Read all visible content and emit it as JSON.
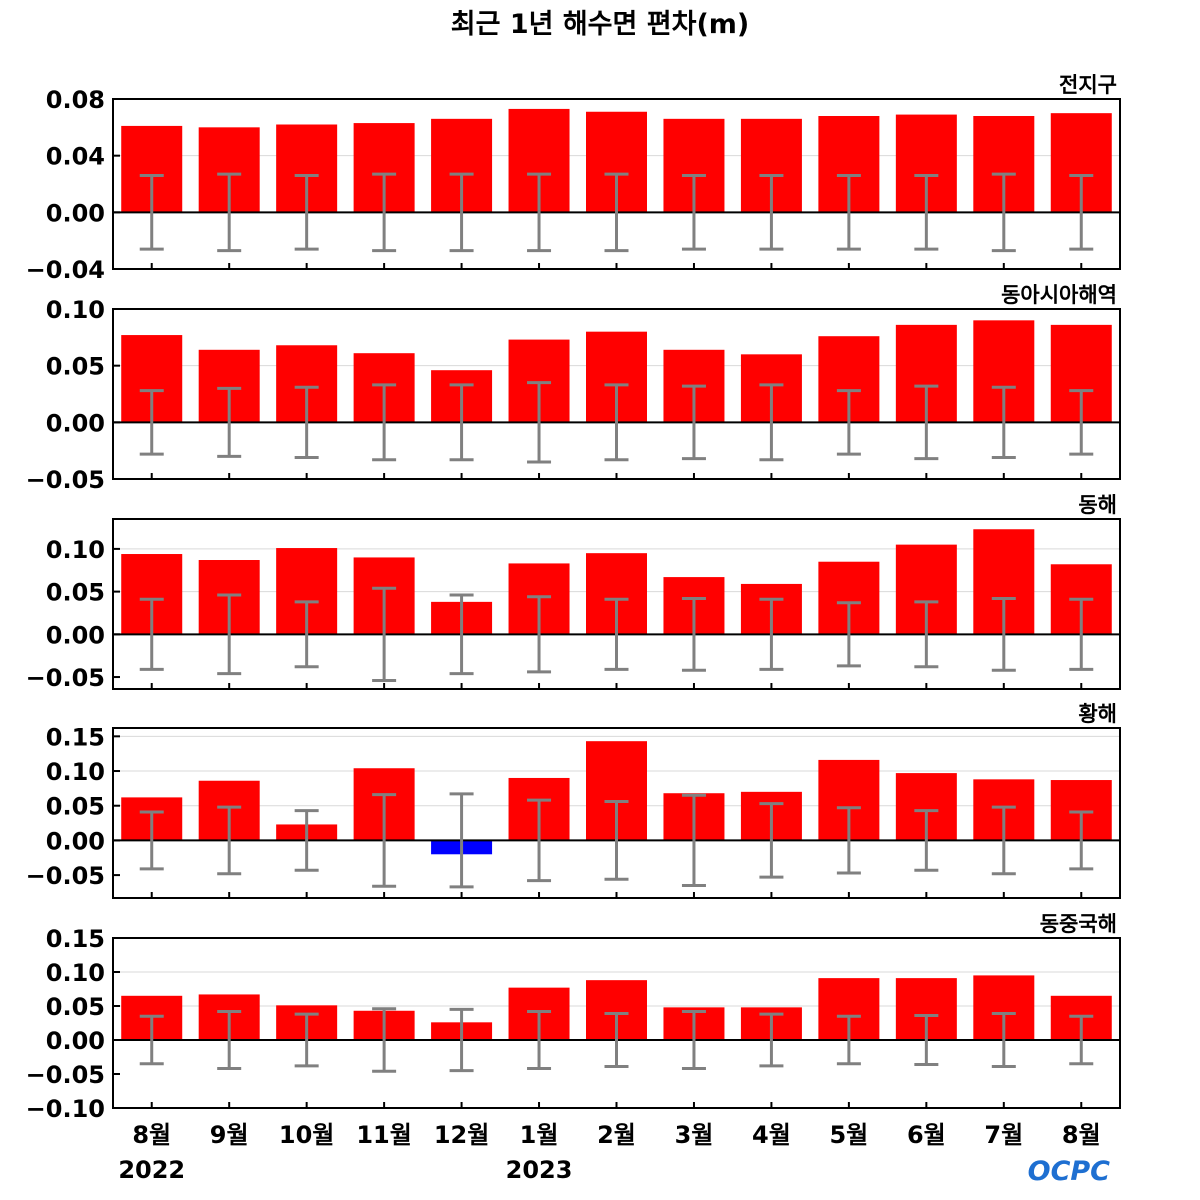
{
  "colors": {
    "positive": "#ff0000",
    "negative": "#0000ff",
    "errorbar": "#808080",
    "zero_line": "#000000",
    "grid": "#d9d9d9",
    "logo": "#1e6fd1"
  },
  "logo_text": "OCPC",
  "chart_data": {
    "type": "bar",
    "title": "최근 1년 해수면 편차(m)",
    "categories": [
      "8월",
      "9월",
      "10월",
      "11월",
      "12월",
      "1월",
      "2월",
      "3월",
      "4월",
      "5월",
      "6월",
      "7월",
      "8월"
    ],
    "year_labels": [
      {
        "label": "2022",
        "category_index": 0
      },
      {
        "label": "2023",
        "category_index": 5
      }
    ],
    "grid": true,
    "panels": [
      {
        "title": "전지구",
        "ylim": [
          -0.04,
          0.08
        ],
        "yticks": [
          -0.04,
          0.0,
          0.04,
          0.08
        ],
        "ytick_labels": [
          "−0.04",
          "0.00",
          "0.04",
          "0.08"
        ],
        "values": [
          0.061,
          0.06,
          0.062,
          0.063,
          0.066,
          0.073,
          0.071,
          0.066,
          0.066,
          0.068,
          0.069,
          0.068,
          0.07
        ],
        "error": [
          0.026,
          0.027,
          0.026,
          0.027,
          0.027,
          0.027,
          0.027,
          0.026,
          0.026,
          0.026,
          0.026,
          0.027,
          0.026
        ]
      },
      {
        "title": "동아시아해역",
        "ylim": [
          -0.05,
          0.1
        ],
        "yticks": [
          -0.05,
          0.0,
          0.05,
          0.1
        ],
        "ytick_labels": [
          "−0.05",
          "0.00",
          "0.05",
          "0.10"
        ],
        "values": [
          0.077,
          0.064,
          0.068,
          0.061,
          0.046,
          0.073,
          0.08,
          0.064,
          0.06,
          0.076,
          0.086,
          0.09,
          0.086
        ],
        "error": [
          0.028,
          0.03,
          0.031,
          0.033,
          0.033,
          0.035,
          0.033,
          0.032,
          0.033,
          0.028,
          0.032,
          0.031,
          0.028
        ]
      },
      {
        "title": "동해",
        "ylim": [
          -0.064,
          0.135
        ],
        "yticks": [
          -0.05,
          0.0,
          0.05,
          0.1
        ],
        "ytick_labels": [
          "−0.05",
          "0.00",
          "0.05",
          "0.10"
        ],
        "values": [
          0.094,
          0.087,
          0.101,
          0.09,
          0.038,
          0.083,
          0.095,
          0.067,
          0.059,
          0.085,
          0.105,
          0.123,
          0.082
        ],
        "error": [
          0.041,
          0.046,
          0.038,
          0.054,
          0.046,
          0.044,
          0.041,
          0.042,
          0.041,
          0.037,
          0.038,
          0.042,
          0.041
        ]
      },
      {
        "title": "황해",
        "ylim": [
          -0.083,
          0.162
        ],
        "yticks": [
          -0.05,
          0.0,
          0.05,
          0.1,
          0.15
        ],
        "ytick_labels": [
          "−0.05",
          "0.00",
          "0.05",
          "0.10",
          "0.15"
        ],
        "values": [
          0.062,
          0.086,
          0.023,
          0.104,
          -0.02,
          0.09,
          0.143,
          0.068,
          0.07,
          0.116,
          0.097,
          0.088,
          0.087
        ],
        "error": [
          0.041,
          0.048,
          0.043,
          0.066,
          0.067,
          0.058,
          0.056,
          0.065,
          0.053,
          0.047,
          0.043,
          0.048,
          0.041
        ]
      },
      {
        "title": "동중국해",
        "ylim": [
          -0.1,
          0.15
        ],
        "yticks": [
          -0.1,
          -0.05,
          0.0,
          0.05,
          0.1,
          0.15
        ],
        "ytick_labels": [
          "−0.10",
          "−0.05",
          "0.00",
          "0.05",
          "0.10",
          "0.15"
        ],
        "values": [
          0.065,
          0.067,
          0.051,
          0.043,
          0.026,
          0.077,
          0.088,
          0.048,
          0.048,
          0.091,
          0.091,
          0.095,
          0.065
        ],
        "error": [
          0.035,
          0.042,
          0.038,
          0.046,
          0.045,
          0.042,
          0.039,
          0.042,
          0.038,
          0.035,
          0.036,
          0.039,
          0.035
        ]
      }
    ]
  }
}
